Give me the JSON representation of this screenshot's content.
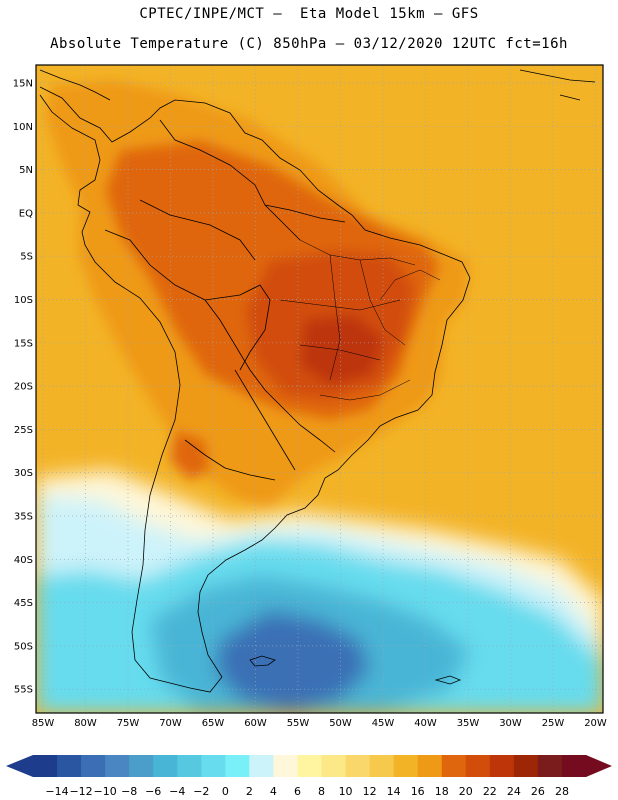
{
  "title": {
    "line1": "CPTEC/INPE/MCT –  Eta Model 15km – GFS",
    "line2": "Absolute Temperature (C) 850hPa – 03/12/2020 12UTC fct=16h"
  },
  "axes": {
    "lat_labels": [
      "15N",
      "10N",
      "5N",
      "EQ",
      "5S",
      "10S",
      "15S",
      "20S",
      "25S",
      "30S",
      "35S",
      "40S",
      "45S",
      "50S",
      "55S"
    ],
    "lon_labels": [
      "85W",
      "80W",
      "75W",
      "70W",
      "65W",
      "60W",
      "55W",
      "50W",
      "45W",
      "40W",
      "35W",
      "30W",
      "25W",
      "20W"
    ]
  },
  "colorbar": {
    "labels": [
      "-14",
      "-12",
      "-10",
      "-8",
      "-6",
      "-4",
      "-2",
      "0",
      "2",
      "4",
      "6",
      "8",
      "10",
      "12",
      "14",
      "16",
      "18",
      "20",
      "22",
      "24",
      "26",
      "28"
    ],
    "colors": [
      "#1e3c8c",
      "#2a55a0",
      "#3a6fb5",
      "#4a86c2",
      "#4a9ec9",
      "#49b5d6",
      "#56c8e0",
      "#66dcee",
      "#79f0f7",
      "#cdf3fa",
      "#fef7d9",
      "#fff5a0",
      "#fde887",
      "#f9d76a",
      "#f6c84c",
      "#f3b327",
      "#ef9a16",
      "#e0660d",
      "#d24d0a",
      "#bd3509",
      "#9c2606",
      "#7a1c1c",
      "#740b1e"
    ],
    "under_color": "#1e3c8c",
    "over_color": "#740b1e"
  },
  "map_colors": {
    "ocean_base": "#f3b327",
    "land_warm": "#ef9a16",
    "land_hot": "#e0660d",
    "land_core": "#d24d0a",
    "land_peak": "#bd3509",
    "cool_cream": "#fef7d9",
    "cool_pale": "#cdf3fa",
    "cool_cyan": "#66dcee",
    "cold_mid": "#49b5d6",
    "cold_deep": "#3a6fb5"
  }
}
